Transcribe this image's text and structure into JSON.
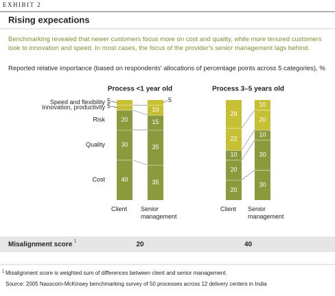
{
  "header": {
    "exhibit": "EXHIBIT 2",
    "title": "Rising expecations",
    "subtitle": "Benchmarking revealed that newer customers focus more on cost and quality, while more tenured customers look to innovation and speed. In most cases, the focus of the provider's senior management lags behind.",
    "measure": "Reported relative importance (based on respondents' allocations of percentage points across 5 categories), %"
  },
  "chart_data": [
    {
      "type": "bar",
      "stacked": true,
      "title": "Process <1 year old",
      "categories": [
        "Client",
        "Senior management"
      ],
      "series": [
        {
          "name": "Cost",
          "color": "#8a9a3c",
          "values": [
            40,
            35
          ]
        },
        {
          "name": "Quality",
          "color": "#8a9a3c",
          "values": [
            30,
            35
          ]
        },
        {
          "name": "Risk",
          "color": "#8a9a3c",
          "values": [
            20,
            15
          ]
        },
        {
          "name": "Innovation, productivity",
          "color": "#c8c034",
          "values": [
            5,
            10
          ]
        },
        {
          "name": "Speed and flexibility",
          "color": "#c8c034",
          "values": [
            5,
            5
          ]
        }
      ],
      "misalignment_score": 20
    },
    {
      "type": "bar",
      "stacked": true,
      "title": "Process 3–5 years old",
      "categories": [
        "Client",
        "Senior management"
      ],
      "series": [
        {
          "color": "#8a9a3c",
          "values": [
            20,
            30
          ]
        },
        {
          "color": "#8a9a3c",
          "values": [
            20,
            30
          ]
        },
        {
          "color": "#8a9a3c",
          "values": [
            10,
            10
          ]
        },
        {
          "color": "#c8c034",
          "values": [
            22,
            20
          ]
        },
        {
          "color": "#c8c034",
          "values": [
            28,
            10
          ]
        }
      ],
      "misalignment_score": 40
    }
  ],
  "misalignment": {
    "label": "Misalignment score",
    "marker": "1"
  },
  "footnote": {
    "marker": "1",
    "text": "Misalignment score is weighted sum of differences between client and senior management."
  },
  "source": "Source: 2005 Nasscom-McKinsey benchmarking survey of 50 processes across 12 delivery centers in India"
}
